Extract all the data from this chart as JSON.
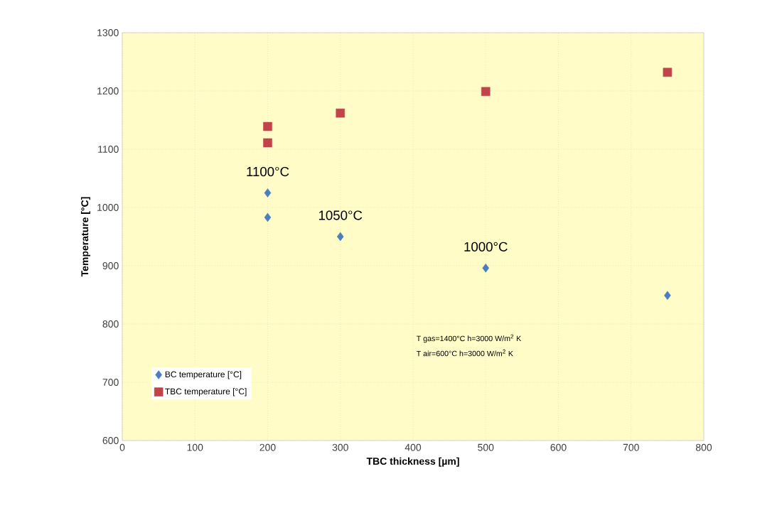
{
  "chart_data": {
    "type": "scatter",
    "xlabel": "TBC thickness [µm]",
    "ylabel": "Temperature [°C]",
    "xlim": [
      0,
      800
    ],
    "xticks": [
      0,
      100,
      200,
      300,
      400,
      500,
      600,
      700,
      800
    ],
    "ylim": [
      600,
      1300
    ],
    "yticks": [
      600,
      700,
      800,
      900,
      1000,
      1100,
      1200,
      1300
    ],
    "grid": true,
    "legend": "bottom left",
    "series": [
      {
        "name": "BC temperature [°C]",
        "color": "#4a7ebf",
        "marker": "diamond",
        "x": [
          200,
          200,
          300,
          500,
          750
        ],
        "values": [
          1025,
          983,
          950,
          896,
          849
        ]
      },
      {
        "name": "TBC temperature [°C]",
        "color": "#c0444a",
        "marker": "square",
        "x": [
          200,
          200,
          300,
          500,
          750
        ],
        "values": [
          1139,
          1111,
          1162,
          1199,
          1232
        ]
      }
    ],
    "annotations": [
      {
        "text": "1100°C",
        "x": 200,
        "y": 1025
      },
      {
        "text": "1050°C",
        "x": 300,
        "y": 950
      },
      {
        "text": "1000°C",
        "x": 500,
        "y": 896
      },
      "T gas=1400°C h=3000 W/m$^{2}$ K",
      "T air=600°C h=3000 W/m$^{2}$ K"
    ]
  }
}
